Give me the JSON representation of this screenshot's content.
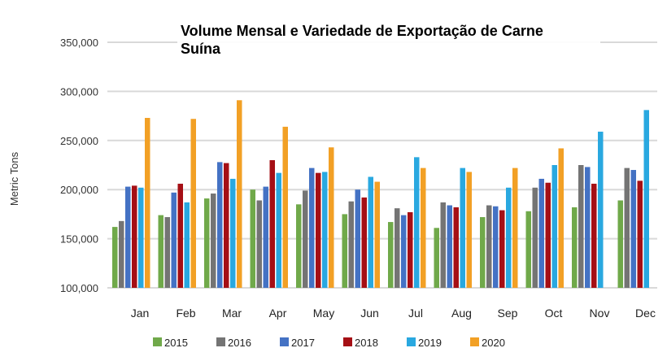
{
  "chart_data": {
    "type": "bar",
    "title_lines": [
      "Volume Mensal e Variedade de Exportação de Carne",
      "Suína"
    ],
    "xlabel": "",
    "ylabel": "Metric Tons",
    "ylim": [
      100000,
      350000
    ],
    "yticks": [
      100000,
      150000,
      200000,
      250000,
      300000,
      350000
    ],
    "ytick_labels": [
      "100,000",
      "150,000",
      "200,000",
      "250,000",
      "300,000",
      "350,000"
    ],
    "grid": true,
    "legend_position": "bottom",
    "categories": [
      "Jan",
      "Feb",
      "Mar",
      "Apr",
      "May",
      "Jun",
      "Jul",
      "Aug",
      "Sep",
      "Oct",
      "Nov",
      "Dec"
    ],
    "series": [
      {
        "name": "2015",
        "color": "#70a94a",
        "values": [
          162000,
          174000,
          191000,
          200000,
          185000,
          175000,
          167000,
          161000,
          172000,
          178000,
          182000,
          189000
        ]
      },
      {
        "name": "2016",
        "color": "#747474",
        "values": [
          168000,
          172000,
          196000,
          189000,
          199000,
          188000,
          181000,
          187000,
          184000,
          202000,
          225000,
          222000
        ]
      },
      {
        "name": "2017",
        "color": "#4472c4",
        "values": [
          203000,
          197000,
          228000,
          203000,
          222000,
          200000,
          174000,
          184000,
          183000,
          211000,
          223000,
          220000
        ]
      },
      {
        "name": "2018",
        "color": "#a50f15",
        "values": [
          204000,
          206000,
          227000,
          230000,
          217000,
          192000,
          177000,
          182000,
          179000,
          207000,
          206000,
          209000
        ]
      },
      {
        "name": "2019",
        "color": "#29a8e0",
        "values": [
          202000,
          187000,
          211000,
          217000,
          218000,
          213000,
          233000,
          222000,
          202000,
          225000,
          259000,
          281000
        ]
      },
      {
        "name": "2020",
        "color": "#f2a025",
        "values": [
          273000,
          272000,
          291000,
          264000,
          243000,
          208000,
          222000,
          218000,
          222000,
          242000,
          null,
          null
        ]
      }
    ]
  }
}
